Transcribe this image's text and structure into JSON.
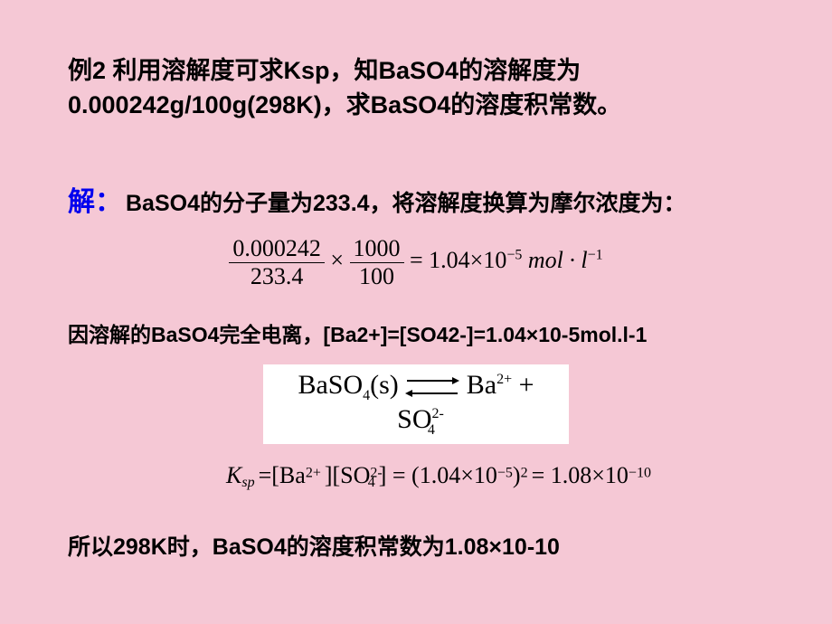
{
  "colors": {
    "background": "#f5c8d5",
    "text": "#000000",
    "solution_label": "#0000ee",
    "equation_box_bg": "#ffffff"
  },
  "typography": {
    "heading_fontsize": 27,
    "body_fontsize": 25,
    "math_fontsize": 26,
    "note_fontsize": 23
  },
  "problem": {
    "line1": "例2  利用溶解度可求Ksp，知BaSO4的溶解度为",
    "line2": "0.000242g/100g(298K)，求BaSO4的溶度积常数。"
  },
  "solution": {
    "label": "解：",
    "text": "BaSO4的分子量为233.4，将溶解度换算为摩尔浓度为："
  },
  "equation1": {
    "frac1_num": "0.000242",
    "frac1_den": "233.4",
    "times": "×",
    "frac2_num": "1000",
    "frac2_den": "100",
    "equals": "= 1.04×10",
    "exp1": "−5",
    "unit": " mol · l",
    "exp2": "−1"
  },
  "note": "因溶解的BaSO4完全电离，[Ba2+]=[SO42-]=1.04×10-5mol.l-1",
  "equilibrium": {
    "left": "BaSO",
    "left_sub": "4",
    "state": "(s)",
    "right1": "Ba",
    "right1_sup": "2+",
    "plus": " + SO",
    "right2_sup": "2-",
    "right2_sub": "4"
  },
  "ksp": {
    "K": "K",
    "sp": "sp",
    "eq": " =[Ba",
    "ba_sup": "2+",
    "mid": "][SO",
    "so_sup": "2-",
    "so_sub": "4",
    "after": "] = (1.04×10",
    "e1": "−5",
    "after2": ")",
    "sq": "2",
    "after3": " = 1.08×10",
    "e2": "−10"
  },
  "final": "所以298K时，BaSO4的溶度积常数为1.08×10-10"
}
